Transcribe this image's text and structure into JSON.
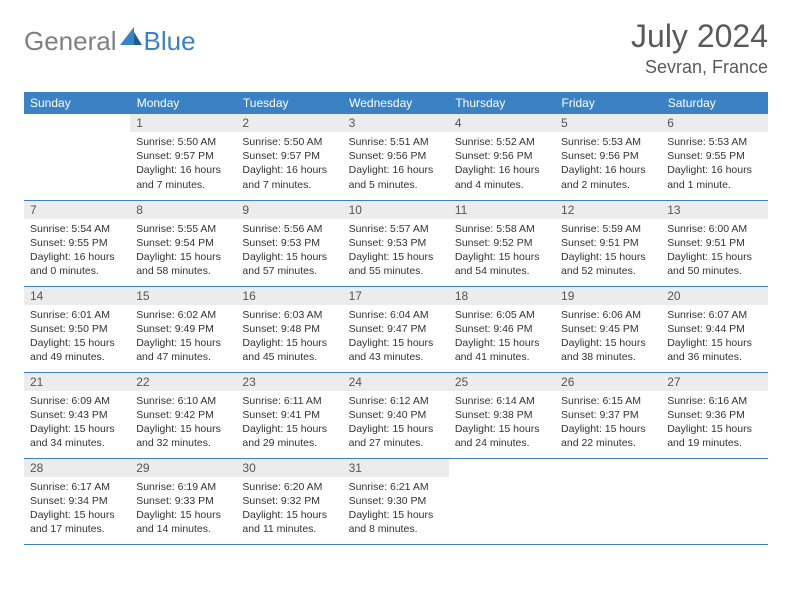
{
  "logo": {
    "text1": "General",
    "text2": "Blue"
  },
  "title": "July 2024",
  "location": "Sevran, France",
  "colors": {
    "header_bg": "#3b82c4",
    "header_text": "#ffffff",
    "daynum_bg": "#ececec",
    "border": "#3b82c4",
    "logo_gray": "#808080",
    "logo_blue": "#3b82c4"
  },
  "weekdays": [
    "Sunday",
    "Monday",
    "Tuesday",
    "Wednesday",
    "Thursday",
    "Friday",
    "Saturday"
  ],
  "weeks": [
    [
      {
        "n": "",
        "sr": "",
        "ss": "",
        "dl": ""
      },
      {
        "n": "1",
        "sr": "Sunrise: 5:50 AM",
        "ss": "Sunset: 9:57 PM",
        "dl": "Daylight: 16 hours and 7 minutes."
      },
      {
        "n": "2",
        "sr": "Sunrise: 5:50 AM",
        "ss": "Sunset: 9:57 PM",
        "dl": "Daylight: 16 hours and 7 minutes."
      },
      {
        "n": "3",
        "sr": "Sunrise: 5:51 AM",
        "ss": "Sunset: 9:56 PM",
        "dl": "Daylight: 16 hours and 5 minutes."
      },
      {
        "n": "4",
        "sr": "Sunrise: 5:52 AM",
        "ss": "Sunset: 9:56 PM",
        "dl": "Daylight: 16 hours and 4 minutes."
      },
      {
        "n": "5",
        "sr": "Sunrise: 5:53 AM",
        "ss": "Sunset: 9:56 PM",
        "dl": "Daylight: 16 hours and 2 minutes."
      },
      {
        "n": "6",
        "sr": "Sunrise: 5:53 AM",
        "ss": "Sunset: 9:55 PM",
        "dl": "Daylight: 16 hours and 1 minute."
      }
    ],
    [
      {
        "n": "7",
        "sr": "Sunrise: 5:54 AM",
        "ss": "Sunset: 9:55 PM",
        "dl": "Daylight: 16 hours and 0 minutes."
      },
      {
        "n": "8",
        "sr": "Sunrise: 5:55 AM",
        "ss": "Sunset: 9:54 PM",
        "dl": "Daylight: 15 hours and 58 minutes."
      },
      {
        "n": "9",
        "sr": "Sunrise: 5:56 AM",
        "ss": "Sunset: 9:53 PM",
        "dl": "Daylight: 15 hours and 57 minutes."
      },
      {
        "n": "10",
        "sr": "Sunrise: 5:57 AM",
        "ss": "Sunset: 9:53 PM",
        "dl": "Daylight: 15 hours and 55 minutes."
      },
      {
        "n": "11",
        "sr": "Sunrise: 5:58 AM",
        "ss": "Sunset: 9:52 PM",
        "dl": "Daylight: 15 hours and 54 minutes."
      },
      {
        "n": "12",
        "sr": "Sunrise: 5:59 AM",
        "ss": "Sunset: 9:51 PM",
        "dl": "Daylight: 15 hours and 52 minutes."
      },
      {
        "n": "13",
        "sr": "Sunrise: 6:00 AM",
        "ss": "Sunset: 9:51 PM",
        "dl": "Daylight: 15 hours and 50 minutes."
      }
    ],
    [
      {
        "n": "14",
        "sr": "Sunrise: 6:01 AM",
        "ss": "Sunset: 9:50 PM",
        "dl": "Daylight: 15 hours and 49 minutes."
      },
      {
        "n": "15",
        "sr": "Sunrise: 6:02 AM",
        "ss": "Sunset: 9:49 PM",
        "dl": "Daylight: 15 hours and 47 minutes."
      },
      {
        "n": "16",
        "sr": "Sunrise: 6:03 AM",
        "ss": "Sunset: 9:48 PM",
        "dl": "Daylight: 15 hours and 45 minutes."
      },
      {
        "n": "17",
        "sr": "Sunrise: 6:04 AM",
        "ss": "Sunset: 9:47 PM",
        "dl": "Daylight: 15 hours and 43 minutes."
      },
      {
        "n": "18",
        "sr": "Sunrise: 6:05 AM",
        "ss": "Sunset: 9:46 PM",
        "dl": "Daylight: 15 hours and 41 minutes."
      },
      {
        "n": "19",
        "sr": "Sunrise: 6:06 AM",
        "ss": "Sunset: 9:45 PM",
        "dl": "Daylight: 15 hours and 38 minutes."
      },
      {
        "n": "20",
        "sr": "Sunrise: 6:07 AM",
        "ss": "Sunset: 9:44 PM",
        "dl": "Daylight: 15 hours and 36 minutes."
      }
    ],
    [
      {
        "n": "21",
        "sr": "Sunrise: 6:09 AM",
        "ss": "Sunset: 9:43 PM",
        "dl": "Daylight: 15 hours and 34 minutes."
      },
      {
        "n": "22",
        "sr": "Sunrise: 6:10 AM",
        "ss": "Sunset: 9:42 PM",
        "dl": "Daylight: 15 hours and 32 minutes."
      },
      {
        "n": "23",
        "sr": "Sunrise: 6:11 AM",
        "ss": "Sunset: 9:41 PM",
        "dl": "Daylight: 15 hours and 29 minutes."
      },
      {
        "n": "24",
        "sr": "Sunrise: 6:12 AM",
        "ss": "Sunset: 9:40 PM",
        "dl": "Daylight: 15 hours and 27 minutes."
      },
      {
        "n": "25",
        "sr": "Sunrise: 6:14 AM",
        "ss": "Sunset: 9:38 PM",
        "dl": "Daylight: 15 hours and 24 minutes."
      },
      {
        "n": "26",
        "sr": "Sunrise: 6:15 AM",
        "ss": "Sunset: 9:37 PM",
        "dl": "Daylight: 15 hours and 22 minutes."
      },
      {
        "n": "27",
        "sr": "Sunrise: 6:16 AM",
        "ss": "Sunset: 9:36 PM",
        "dl": "Daylight: 15 hours and 19 minutes."
      }
    ],
    [
      {
        "n": "28",
        "sr": "Sunrise: 6:17 AM",
        "ss": "Sunset: 9:34 PM",
        "dl": "Daylight: 15 hours and 17 minutes."
      },
      {
        "n": "29",
        "sr": "Sunrise: 6:19 AM",
        "ss": "Sunset: 9:33 PM",
        "dl": "Daylight: 15 hours and 14 minutes."
      },
      {
        "n": "30",
        "sr": "Sunrise: 6:20 AM",
        "ss": "Sunset: 9:32 PM",
        "dl": "Daylight: 15 hours and 11 minutes."
      },
      {
        "n": "31",
        "sr": "Sunrise: 6:21 AM",
        "ss": "Sunset: 9:30 PM",
        "dl": "Daylight: 15 hours and 8 minutes."
      },
      {
        "n": "",
        "sr": "",
        "ss": "",
        "dl": ""
      },
      {
        "n": "",
        "sr": "",
        "ss": "",
        "dl": ""
      },
      {
        "n": "",
        "sr": "",
        "ss": "",
        "dl": ""
      }
    ]
  ]
}
